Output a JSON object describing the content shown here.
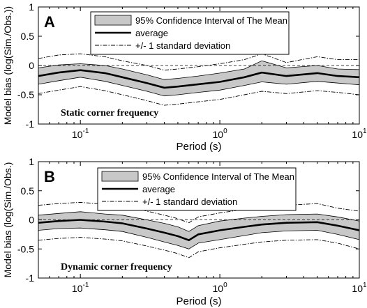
{
  "chart_data": [
    {
      "type": "line",
      "panel_label": "A",
      "annotation": "Static  corner frequency",
      "xlabel": "Period (s)",
      "ylabel": "Model bias (log(Sim./Obs.))",
      "xscale": "log",
      "xlim": [
        0.05,
        10
      ],
      "ylim": [
        -1,
        1
      ],
      "x_tick_labels": [
        "10^-1",
        "10^0",
        "10^1"
      ],
      "y_tick_labels": [
        "1",
        "0.5",
        "0",
        "-0.5",
        "-1"
      ],
      "legend_placement": "top-center",
      "legend": [
        {
          "label": "95% Confidence Interval of The Mean",
          "style": "gray-fill"
        },
        {
          "label": "average",
          "style": "thick-solid"
        },
        {
          "label": "+/- 1 standard deviation",
          "style": "thin-dashdot"
        }
      ],
      "x": [
        0.05,
        0.07,
        0.1,
        0.15,
        0.2,
        0.3,
        0.4,
        0.5,
        0.7,
        1.0,
        1.5,
        2.0,
        3.0,
        5.0,
        7.0,
        10.0
      ],
      "series": [
        {
          "name": "average",
          "values": [
            -0.18,
            -0.12,
            -0.08,
            -0.13,
            -0.2,
            -0.3,
            -0.38,
            -0.36,
            -0.32,
            -0.28,
            -0.2,
            -0.12,
            -0.18,
            -0.13,
            -0.18,
            -0.2
          ]
        },
        {
          "name": "95% CI upper",
          "values": [
            -0.04,
            0.01,
            0.03,
            0.0,
            -0.06,
            -0.16,
            -0.24,
            -0.22,
            -0.18,
            -0.13,
            -0.06,
            0.08,
            -0.04,
            0.0,
            -0.06,
            -0.07
          ]
        },
        {
          "name": "95% CI lower",
          "values": [
            -0.32,
            -0.26,
            -0.2,
            -0.27,
            -0.34,
            -0.44,
            -0.52,
            -0.5,
            -0.46,
            -0.42,
            -0.34,
            -0.28,
            -0.32,
            -0.27,
            -0.3,
            -0.33
          ]
        },
        {
          "name": "+1 std",
          "values": [
            0.12,
            0.18,
            0.2,
            0.15,
            0.08,
            0.0,
            -0.08,
            -0.06,
            -0.02,
            0.03,
            0.1,
            0.2,
            0.05,
            0.15,
            0.1,
            0.1
          ]
        },
        {
          "name": "-1 std",
          "values": [
            -0.48,
            -0.42,
            -0.36,
            -0.43,
            -0.5,
            -0.6,
            -0.68,
            -0.66,
            -0.62,
            -0.58,
            -0.5,
            -0.44,
            -0.48,
            -0.43,
            -0.46,
            -0.5
          ]
        }
      ]
    },
    {
      "type": "line",
      "panel_label": "B",
      "annotation": "Dynamic corner frequency",
      "xlabel": "Period (s)",
      "ylabel": "Model bias (log(Sim./Obs.)",
      "xscale": "log",
      "xlim": [
        0.05,
        10
      ],
      "ylim": [
        -1,
        1
      ],
      "x_tick_labels": [
        "10^-1",
        "10^0",
        "10^1"
      ],
      "y_tick_labels": [
        "1",
        "0.5",
        "0",
        "-0.5",
        "-1"
      ],
      "legend_placement": "top-center",
      "legend": [
        {
          "label": "95% Confidence Interval of The Mean",
          "style": "gray-fill"
        },
        {
          "label": "average",
          "style": "thick-solid"
        },
        {
          "label": "+/- 1 standard deviation",
          "style": "thin-dashdot"
        }
      ],
      "x": [
        0.05,
        0.07,
        0.1,
        0.15,
        0.2,
        0.3,
        0.4,
        0.5,
        0.6,
        0.7,
        1.0,
        1.5,
        2.0,
        3.0,
        5.0,
        7.0,
        10.0
      ],
      "series": [
        {
          "name": "average",
          "values": [
            -0.05,
            -0.02,
            0.0,
            -0.03,
            -0.06,
            -0.15,
            -0.22,
            -0.28,
            -0.35,
            -0.25,
            -0.18,
            -0.12,
            -0.08,
            -0.05,
            -0.04,
            -0.1,
            -0.18
          ]
        },
        {
          "name": "95% CI upper",
          "values": [
            0.08,
            0.11,
            0.14,
            0.1,
            0.08,
            0.0,
            -0.06,
            -0.12,
            -0.2,
            -0.1,
            -0.02,
            0.03,
            0.06,
            0.09,
            0.1,
            0.05,
            -0.02
          ]
        },
        {
          "name": "95% CI lower",
          "values": [
            -0.18,
            -0.15,
            -0.14,
            -0.17,
            -0.2,
            -0.3,
            -0.38,
            -0.44,
            -0.5,
            -0.4,
            -0.34,
            -0.27,
            -0.22,
            -0.19,
            -0.18,
            -0.25,
            -0.34
          ]
        },
        {
          "name": "+1 std",
          "values": [
            0.25,
            0.28,
            0.3,
            0.27,
            0.24,
            0.15,
            0.08,
            0.02,
            -0.05,
            0.05,
            0.12,
            0.18,
            0.22,
            0.25,
            0.28,
            0.2,
            0.15
          ]
        },
        {
          "name": "-1 std",
          "values": [
            -0.35,
            -0.32,
            -0.3,
            -0.33,
            -0.36,
            -0.45,
            -0.52,
            -0.58,
            -0.65,
            -0.55,
            -0.48,
            -0.42,
            -0.38,
            -0.35,
            -0.34,
            -0.4,
            -0.5
          ]
        }
      ]
    }
  ]
}
